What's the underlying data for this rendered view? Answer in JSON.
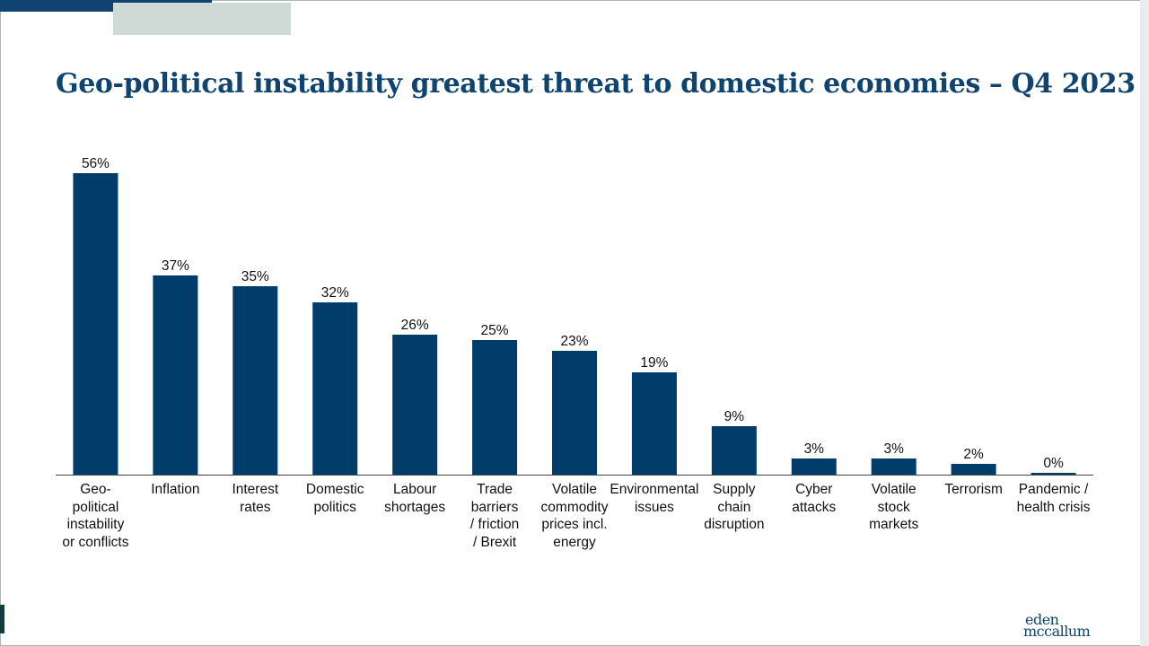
{
  "page": {
    "title": "Geo-political instability greatest threat to domestic economies – Q4 2023",
    "logo": {
      "line1": "eden",
      "line2": "mccallum"
    }
  },
  "colors": {
    "bar": "#003d6b",
    "title": "#0f4470",
    "accent_bar": "#0f4470",
    "accent_block": "#cfd9d6"
  },
  "chart_data": {
    "type": "bar",
    "title": "Geo-political instability greatest threat to domestic economies – Q4 2023",
    "xlabel": "",
    "ylabel": "",
    "ylim": [
      0,
      56
    ],
    "grid": false,
    "legend": "none",
    "categories": [
      "Geo-\npolitical\ninstability\nor conflicts",
      "Inflation",
      "Interest\nrates",
      "Domestic\npolitics",
      "Labour\nshortages",
      "Trade\nbarriers\n/ friction\n/ Brexit",
      "Volatile\ncommodity\nprices incl.\nenergy",
      "Environmental\nissues",
      "Supply\nchain\ndisruption",
      "Cyber\nattacks",
      "Volatile\nstock\nmarkets",
      "Terrorism",
      "Pandemic /\nhealth crisis"
    ],
    "values": [
      56,
      37,
      35,
      32,
      26,
      25,
      23,
      19,
      9,
      3,
      3,
      2,
      0
    ],
    "data_labels": [
      "56%",
      "37%",
      "35%",
      "32%",
      "26%",
      "25%",
      "23%",
      "19%",
      "9%",
      "3%",
      "3%",
      "2%",
      "0%"
    ]
  }
}
